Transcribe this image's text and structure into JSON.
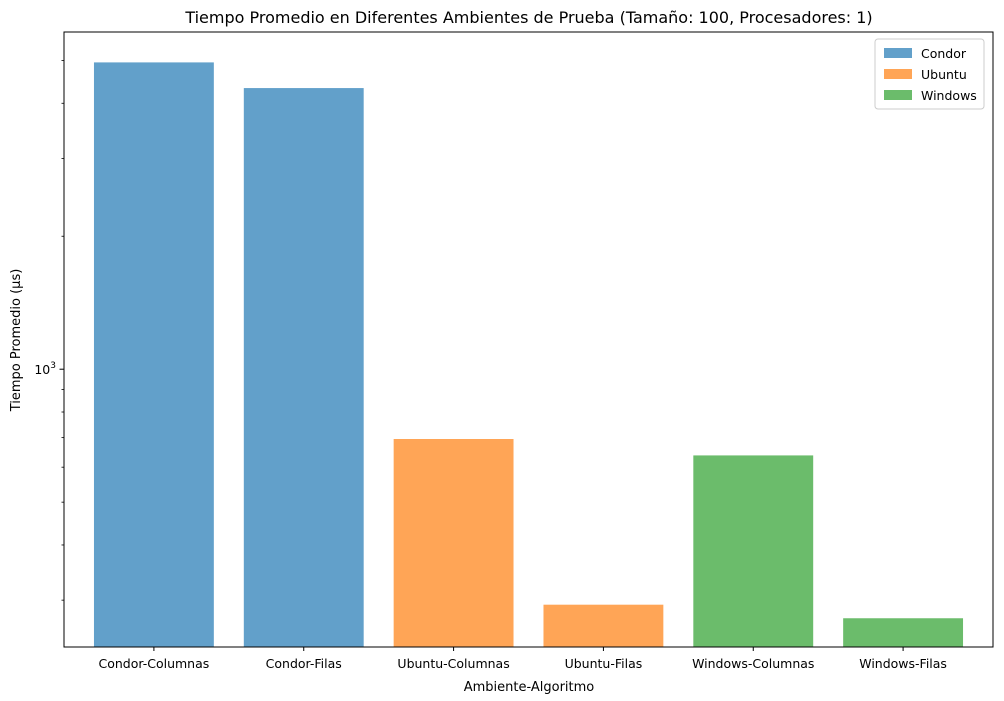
{
  "chart_data": {
    "type": "bar",
    "title": "Tiempo Promedio en Diferentes Ambientes de Prueba (Tamaño: 100, Procesadores: 1)",
    "xlabel": "Ambiente-Algoritmo",
    "ylabel": "Tiempo Promedio (µs)",
    "yscale": "log",
    "ylim": [
      235,
      5800
    ],
    "y_ticks": [
      {
        "value": 1000,
        "base": "10",
        "exp": "3"
      }
    ],
    "y_minor_ticks": [
      300,
      400,
      500,
      600,
      700,
      800,
      900,
      2000,
      3000,
      4000,
      5000
    ],
    "categories": [
      "Condor-Columnas",
      "Condor-Filas",
      "Ubuntu-Columnas",
      "Ubuntu-Filas",
      "Windows-Columnas",
      "Windows-Filas"
    ],
    "series": [
      {
        "name": "Condor",
        "color": "#1f77b4",
        "values": [
          4950,
          4330,
          null,
          null,
          null,
          null
        ]
      },
      {
        "name": "Ubuntu",
        "color": "#ff7f0e",
        "values": [
          null,
          null,
          695,
          293,
          null,
          null
        ]
      },
      {
        "name": "Windows",
        "color": "#2ca02c",
        "values": [
          null,
          null,
          null,
          null,
          638,
          273
        ]
      }
    ],
    "legend": "top-right",
    "grid": false
  }
}
